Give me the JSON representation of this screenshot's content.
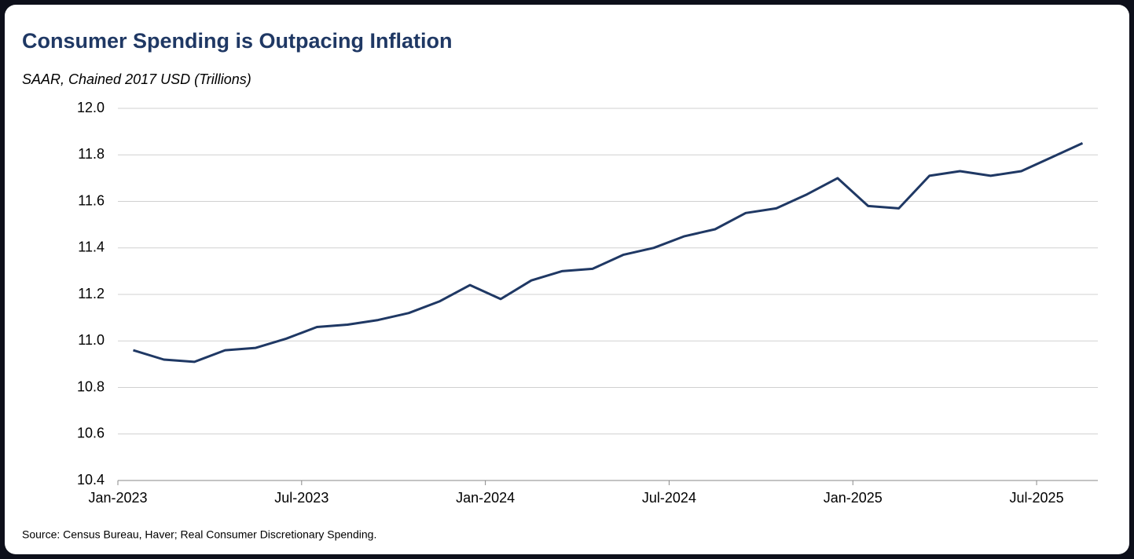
{
  "chart_data": {
    "type": "line",
    "title": "Consumer Spending is Outpacing Inflation",
    "subtitle": "SAAR, Chained 2017 USD (Trillions)",
    "source": "Source: Census Bureau, Haver; Real Consumer Discretionary Spending.",
    "categories": [
      "Jan-2023",
      null,
      null,
      null,
      null,
      null,
      "Jul-2023",
      null,
      null,
      null,
      null,
      null,
      "Jan-2024",
      null,
      null,
      null,
      null,
      null,
      "Jul-2024",
      null,
      null,
      null,
      null,
      null,
      "Jan-2025",
      null,
      null,
      null,
      null,
      null,
      "Jul-2025",
      null
    ],
    "series": [
      {
        "name": "Real Consumer Discretionary Spending",
        "color": "#1f3864",
        "values": [
          10.96,
          10.92,
          10.91,
          10.96,
          10.97,
          11.01,
          11.06,
          11.07,
          11.09,
          11.12,
          11.17,
          11.24,
          11.18,
          11.26,
          11.3,
          11.31,
          11.37,
          11.4,
          11.45,
          11.48,
          11.55,
          11.57,
          11.63,
          11.7,
          11.58,
          11.57,
          11.71,
          11.73,
          11.71,
          11.73,
          11.79,
          11.85
        ]
      }
    ],
    "ylim": [
      10.4,
      12.0
    ],
    "yticks": [
      {
        "value": 10.4,
        "label": "10.4"
      },
      {
        "value": 10.6,
        "label": "10.6"
      },
      {
        "value": 10.8,
        "label": "10.8"
      },
      {
        "value": 11,
        "label": "11.0"
      },
      {
        "value": 11.2,
        "label": "11.2"
      },
      {
        "value": 11.4,
        "label": "11.4"
      },
      {
        "value": 11.6,
        "label": "11.6"
      },
      {
        "value": 11.8,
        "label": "11.8"
      },
      {
        "value": 12,
        "label": "12.0"
      }
    ],
    "grid": true
  }
}
